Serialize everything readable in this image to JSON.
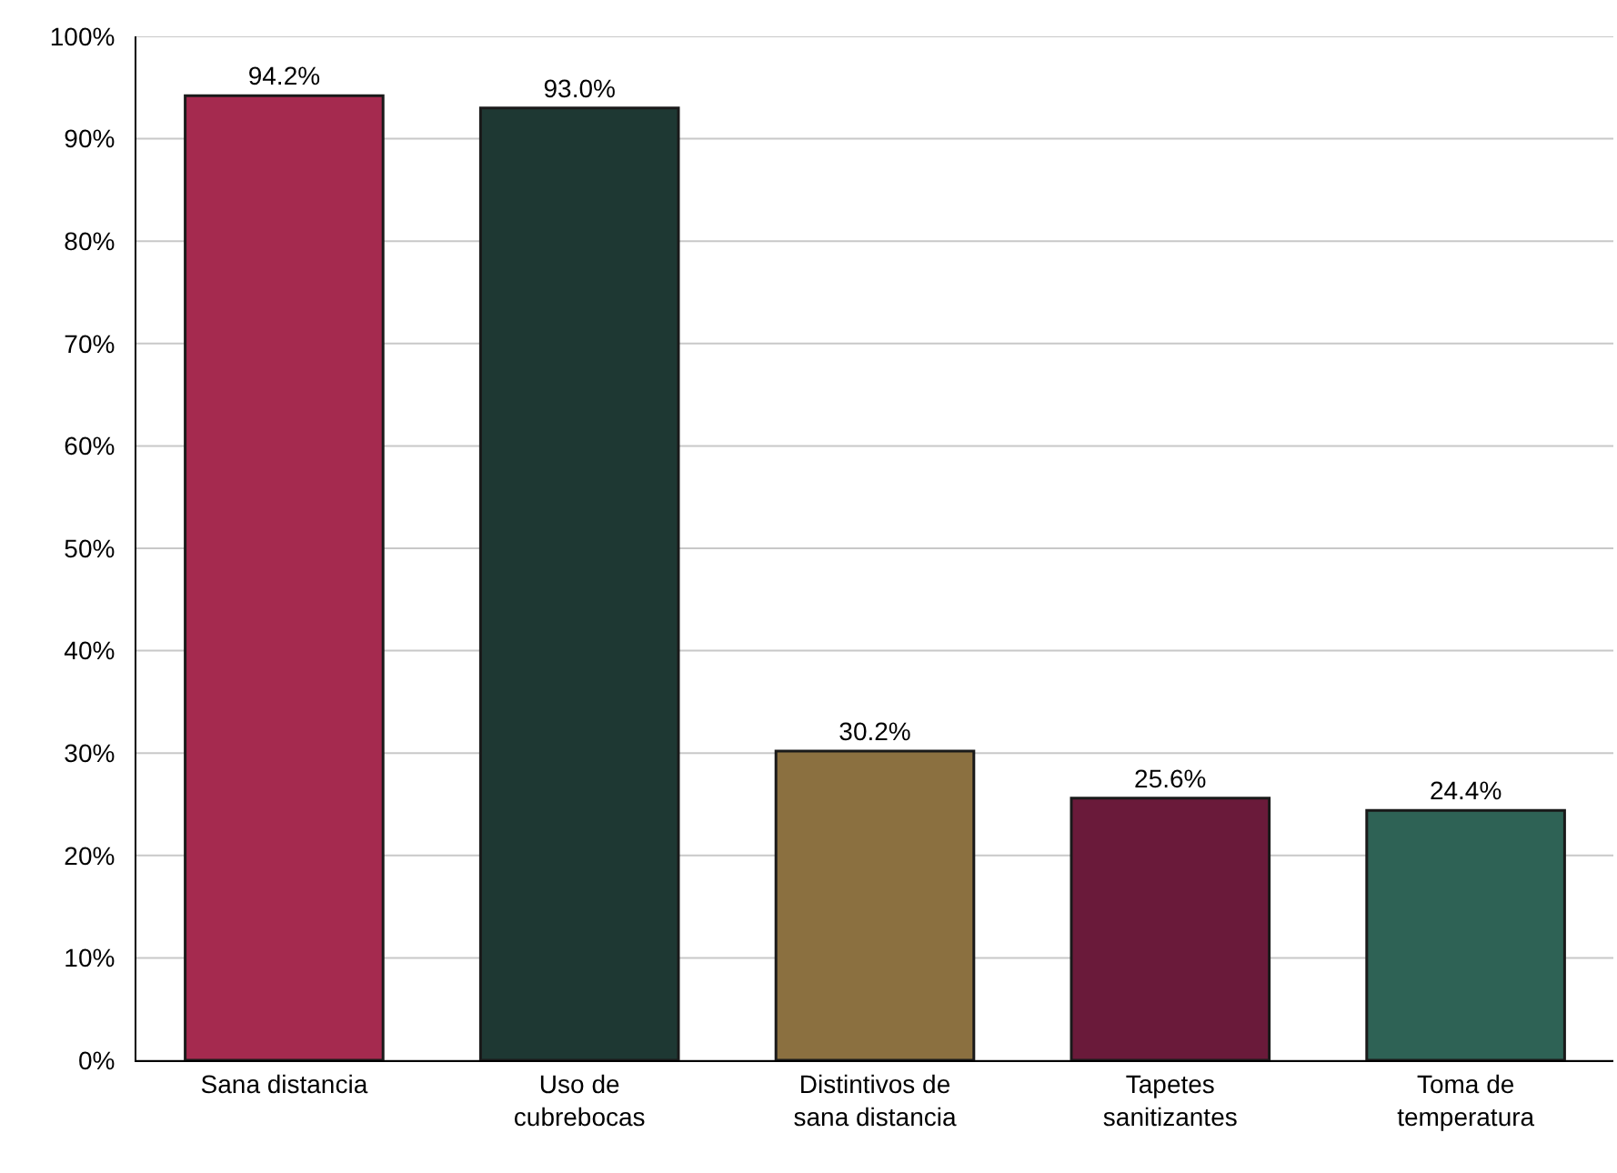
{
  "chart_data": {
    "type": "bar",
    "categories": [
      "Sana distancia",
      "Uso de cubrebocas",
      "Distintivos de sana distancia",
      "Tapetes sanitizantes",
      "Toma de temperatura"
    ],
    "values": [
      94.2,
      93.0,
      30.2,
      25.6,
      24.4
    ],
    "colors": [
      "#a52a4f",
      "#1e3833",
      "#8b7040",
      "#6a1a3a",
      "#2e6255"
    ],
    "value_labels": [
      "94.2%",
      "93.0%",
      "30.2%",
      "25.6%",
      "24.4%"
    ],
    "ylim": [
      0,
      100
    ],
    "yticks": [
      {
        "value": 0,
        "label": "0%"
      },
      {
        "value": 10,
        "label": "10%"
      },
      {
        "value": 20,
        "label": "20%"
      },
      {
        "value": 30,
        "label": "30%"
      },
      {
        "value": 40,
        "label": "40%"
      },
      {
        "value": 50,
        "label": "50%"
      },
      {
        "value": 60,
        "label": "60%"
      },
      {
        "value": 70,
        "label": "70%"
      },
      {
        "value": 80,
        "label": "80%"
      },
      {
        "value": 90,
        "label": "90%"
      },
      {
        "value": 100,
        "label": "100%"
      }
    ],
    "grid": "y"
  }
}
